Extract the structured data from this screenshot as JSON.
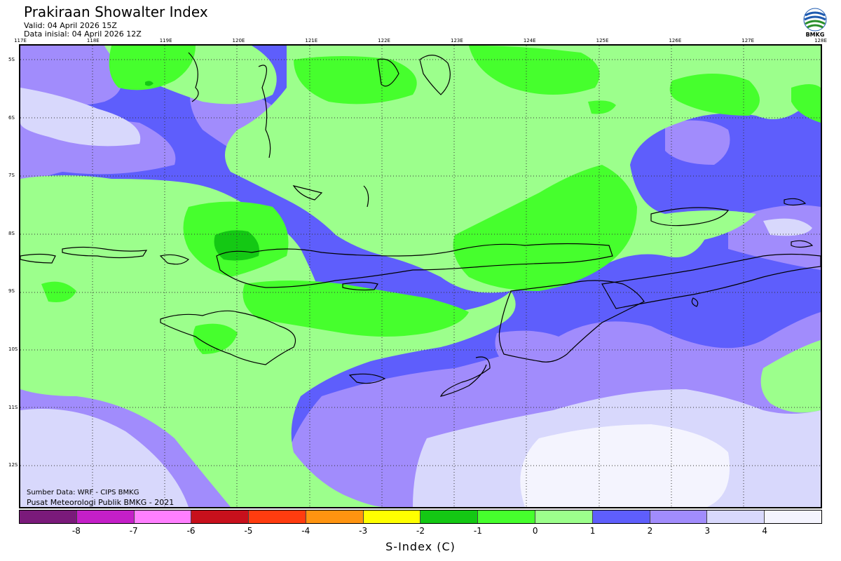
{
  "header": {
    "title": "Prakiraan Showalter Index",
    "valid": "Valid: 04 April 2026 15Z",
    "init": "Data inisial: 04 April 2026 12Z"
  },
  "logo": {
    "label": "BMKG",
    "icon": "bmkg-logo-icon"
  },
  "longitudes": [
    "117E",
    "118E",
    "119E",
    "120E",
    "121E",
    "122E",
    "123E",
    "124E",
    "125E",
    "126E",
    "127E",
    "128E"
  ],
  "latitudes": [
    "5S",
    "6S",
    "7S",
    "8S",
    "9S",
    "10S",
    "11S",
    "12S"
  ],
  "source": {
    "line1": "Sumber Data: WRF - CIPS BMKG",
    "line2": "Pusat Meteorologi Publik BMKG - 2021"
  },
  "colorbar": {
    "colors": [
      "#7a1a7a",
      "#c41fc8",
      "#ff7fff",
      "#c8101c",
      "#ff3c0f",
      "#ff9410",
      "#ffff00",
      "#14c814",
      "#46ff2d",
      "#9cff8c",
      "#5e5efc",
      "#a18cfc",
      "#d8d8fc",
      "#f4f4fe"
    ],
    "ticks": [
      "-8",
      "-7",
      "-6",
      "-5",
      "-4",
      "-3",
      "-2",
      "-1",
      "0",
      "1",
      "2",
      "3",
      "4"
    ],
    "title": "S-Index (C)"
  }
}
